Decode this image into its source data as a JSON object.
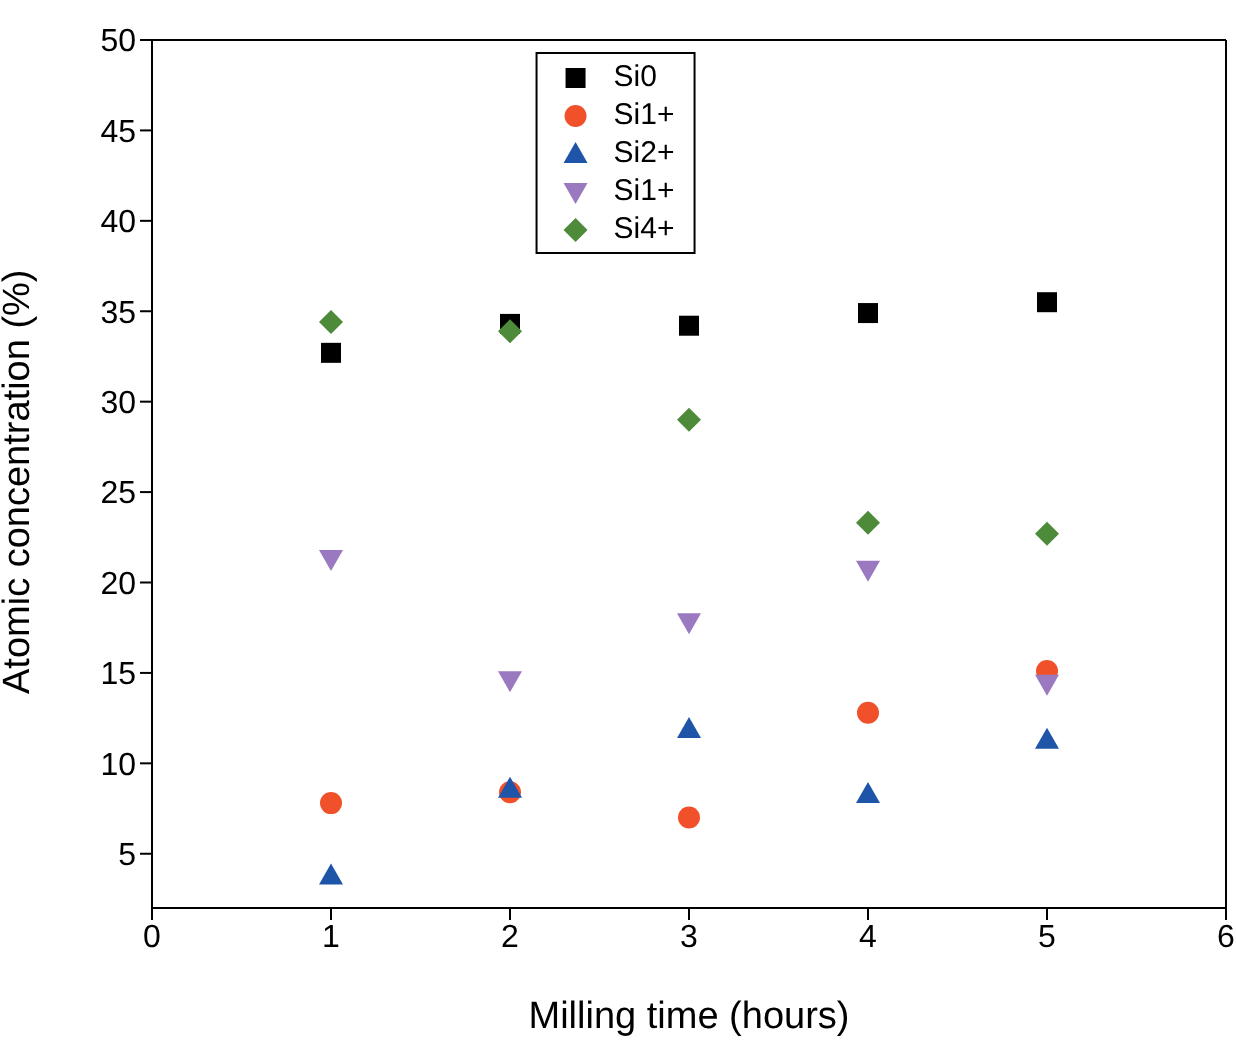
{
  "chart_data": {
    "type": "scatter",
    "xlabel": "Milling time (hours)",
    "ylabel": "Atomic concentration (%)",
    "x": [
      1,
      2,
      3,
      4,
      5
    ],
    "xlim": [
      0,
      6
    ],
    "xticks": [
      0,
      1,
      2,
      3,
      4,
      5,
      6
    ],
    "ylim": [
      2,
      50
    ],
    "yticks": [
      5,
      10,
      15,
      20,
      25,
      30,
      35,
      40,
      45,
      50
    ],
    "legend": "top",
    "series": [
      {
        "name": "Si0",
        "color": "#000000",
        "marker": "square",
        "values": [
          32.7,
          34.3,
          34.2,
          34.9,
          35.5
        ]
      },
      {
        "name": "Si1+",
        "color": "#f0502a",
        "marker": "circle",
        "values": [
          7.8,
          8.4,
          7.0,
          12.8,
          15.1
        ]
      },
      {
        "name": "Si2+",
        "color": "#1f55a8",
        "marker": "triangle",
        "values": [
          3.8,
          8.6,
          11.9,
          8.3,
          11.3
        ]
      },
      {
        "name": "Si1+",
        "color": "#9b79c0",
        "marker": "triangle-down",
        "values": [
          21.3,
          14.6,
          17.8,
          20.7,
          14.4
        ]
      },
      {
        "name": "Si4+",
        "color": "#4d8a3a",
        "marker": "diamond",
        "values": [
          34.4,
          33.9,
          29.0,
          23.3,
          22.7
        ]
      }
    ]
  }
}
